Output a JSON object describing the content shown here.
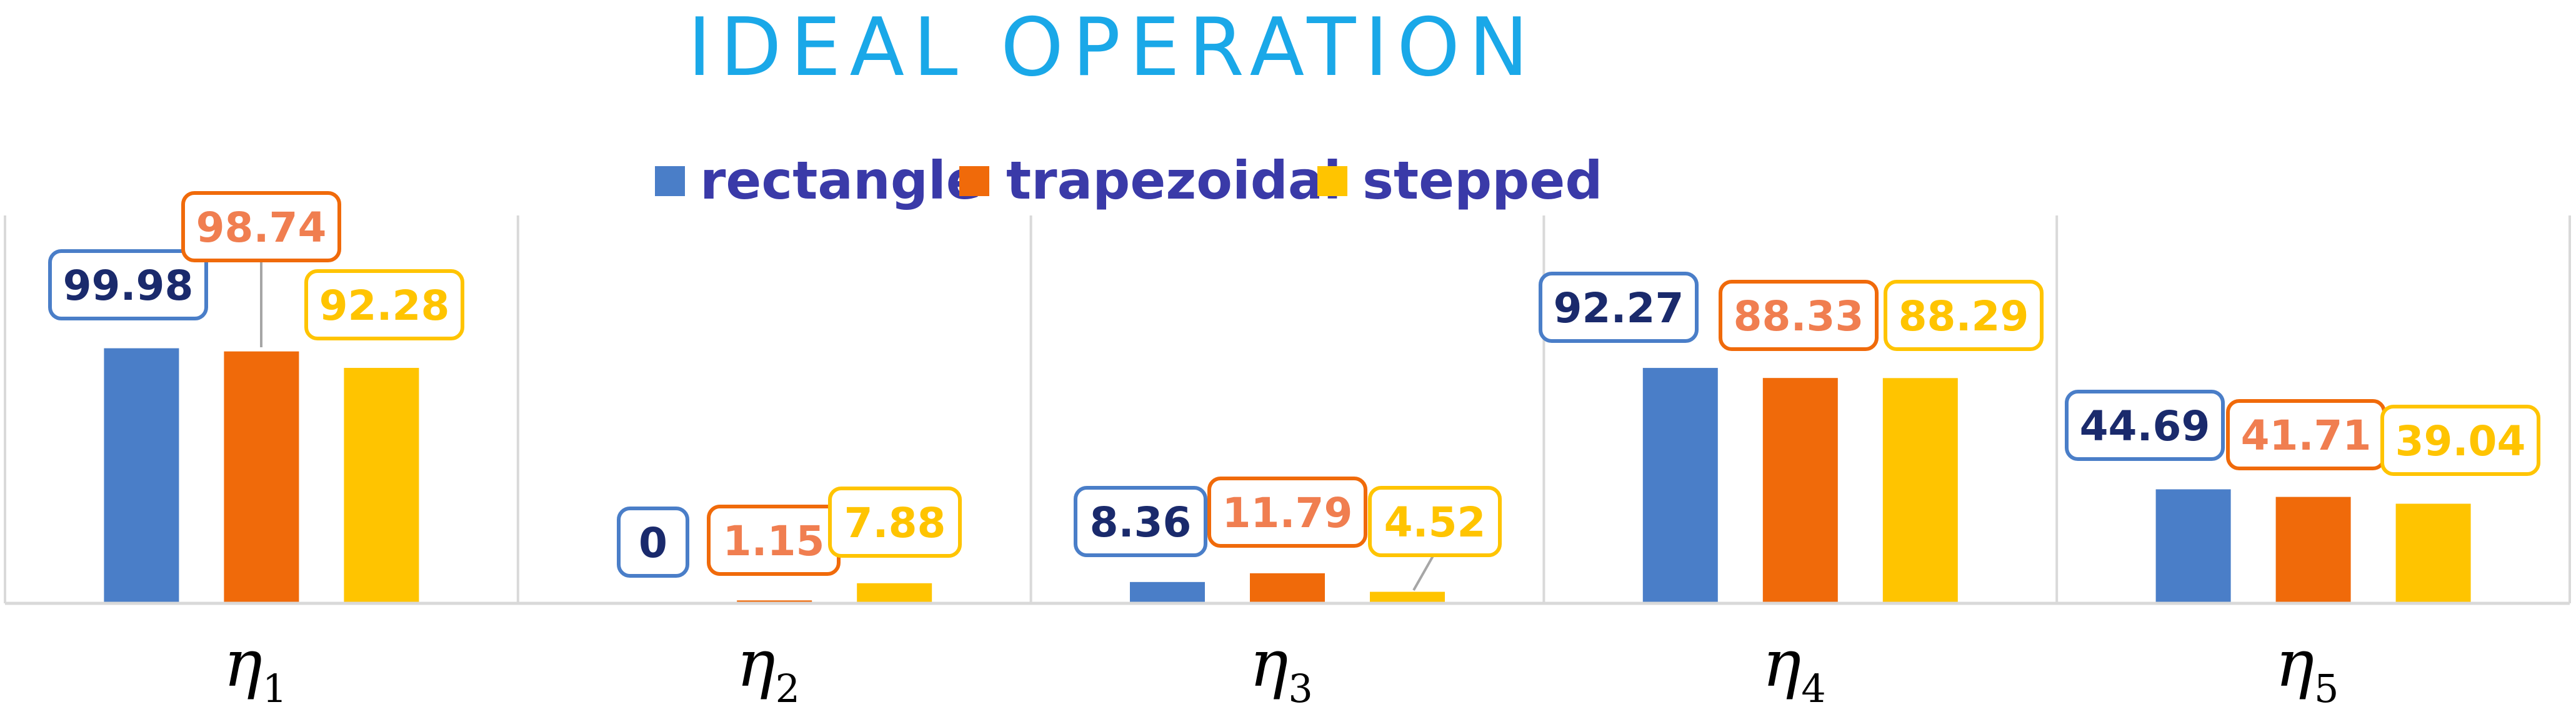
{
  "chart_data": {
    "type": "bar",
    "title": "IDEAL OPERATION",
    "categories": [
      {
        "symbol": "η",
        "sub": "1"
      },
      {
        "symbol": "η",
        "sub": "2"
      },
      {
        "symbol": "η",
        "sub": "3"
      },
      {
        "symbol": "η",
        "sub": "4"
      },
      {
        "symbol": "η",
        "sub": "5"
      }
    ],
    "series": [
      {
        "name": "rectangle",
        "color": "#4a7ec8",
        "label_color": "#1a2a6c",
        "values": [
          99.98,
          0,
          8.36,
          92.27,
          44.69
        ],
        "labels": [
          "99.98",
          "0",
          "8.36",
          "92.27",
          "44.69"
        ]
      },
      {
        "name": "trapezoidal",
        "color": "#f06a0a",
        "label_color": "#f07e50",
        "values": [
          98.74,
          1.15,
          11.79,
          88.33,
          41.71
        ],
        "labels": [
          "98.74",
          "1.15",
          "11.79",
          "88.33",
          "41.71"
        ]
      },
      {
        "name": "stepped",
        "color": "#ffc400",
        "label_color": "#ffc400",
        "values": [
          92.28,
          7.88,
          4.52,
          88.29,
          39.04
        ],
        "labels": [
          "92.28",
          "7.88",
          "4.52",
          "88.29",
          "39.04"
        ]
      }
    ],
    "ylim": [
      0,
      100
    ],
    "grid": false,
    "legend_position": "top",
    "xlabel": "",
    "ylabel": "",
    "colors": {
      "title": "#1aa8e8",
      "legend_text": "#3a3aa8",
      "axis": "#d9d9d9"
    }
  }
}
